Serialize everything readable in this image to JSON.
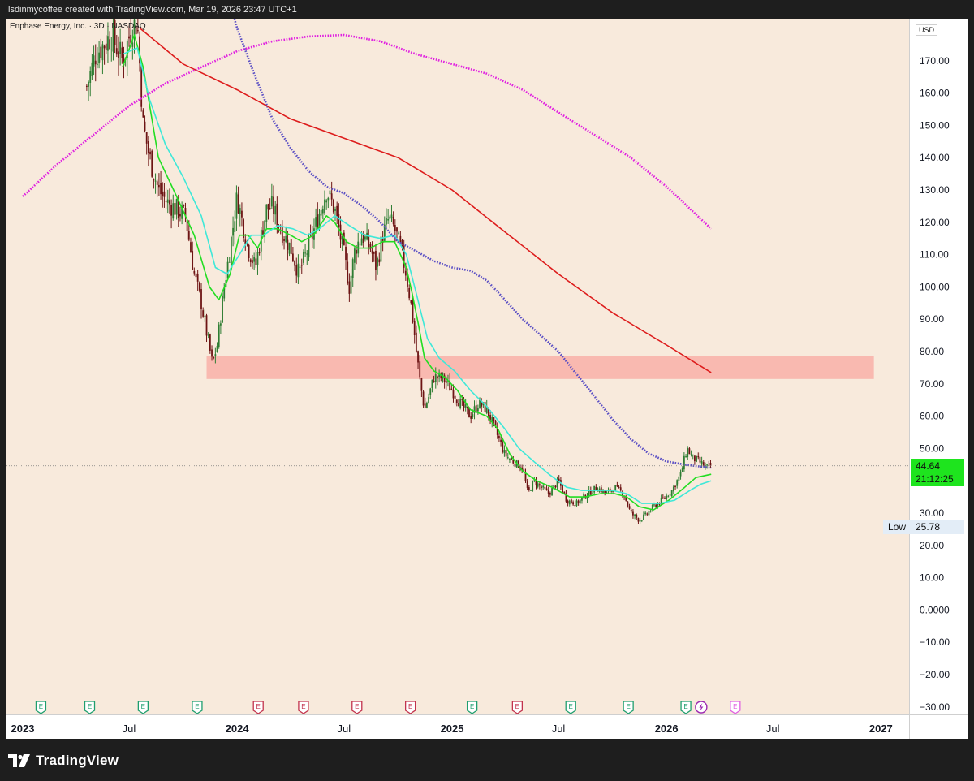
{
  "header": {
    "credit": "lsdinmycoffee created with TradingView.com, Mar 19, 2026 23:47 UTC+1"
  },
  "symbol_line": "Enphase Energy, Inc. · 3D · NASDAQ",
  "price_scale": {
    "currency": "USD",
    "ticks": [
      "170.00",
      "160.00",
      "150.00",
      "140.00",
      "130.00",
      "120.00",
      "110.00",
      "100.00",
      "90.00",
      "80.00",
      "70.00",
      "60.00",
      "50.00",
      "30.00",
      "20.00",
      "10.00",
      "0.0000",
      "−10.00",
      "−20.00",
      "−30.00"
    ],
    "last_price": "44.64",
    "countdown": "21:12:25",
    "low_label": "Low",
    "low_value": "25.78"
  },
  "time_axis": {
    "labels": [
      "2023",
      "Jul",
      "2024",
      "Jul",
      "2025",
      "Jul",
      "2026",
      "Jul",
      "2027"
    ]
  },
  "branding": {
    "name": "TradingView"
  },
  "colors": {
    "background": "#f8eadc",
    "up": "#2e7d32",
    "down": "#6d1414",
    "ma_fast": "#22dd22",
    "ma_teal": "#3ee8d8",
    "ma_purple": "#5b4fc4",
    "ma_red": "#dd1c1c",
    "ma_magenta": "#e020e0",
    "zone": "#f8b4ab",
    "price_tag": "#1ee41e"
  },
  "chart_data": {
    "type": "candlestick",
    "title": "Enphase Energy, Inc. · 3D · NASDAQ",
    "interval": "3D",
    "currency": "USD",
    "x_range": [
      "2023-01-01",
      "2027-01-01"
    ],
    "ylim": [
      -30,
      177
    ],
    "price_line": 44.64,
    "low": 25.78,
    "zone": {
      "from": 71.5,
      "to": 78.5,
      "x_start": "2023-11-10",
      "x_end": "2026-12-20"
    },
    "close_path": [
      [
        "2023-04-20",
        162
      ],
      [
        "2023-05-05",
        172
      ],
      [
        "2023-06-01",
        178
      ],
      [
        "2023-06-20",
        170
      ],
      [
        "2023-07-05",
        180
      ],
      [
        "2023-07-15",
        182
      ],
      [
        "2023-07-25",
        150
      ],
      [
        "2023-08-05",
        140
      ],
      [
        "2023-08-20",
        130
      ],
      [
        "2023-09-05",
        126
      ],
      [
        "2023-09-20",
        124
      ],
      [
        "2023-10-05",
        122
      ],
      [
        "2023-10-20",
        104
      ],
      [
        "2023-11-01",
        95
      ],
      [
        "2023-11-10",
        86
      ],
      [
        "2023-11-20",
        76
      ],
      [
        "2023-11-28",
        82
      ],
      [
        "2023-12-10",
        100
      ],
      [
        "2023-12-20",
        112
      ],
      [
        "2024-01-01",
        128
      ],
      [
        "2024-01-10",
        120
      ],
      [
        "2024-01-20",
        112
      ],
      [
        "2024-02-01",
        106
      ],
      [
        "2024-02-10",
        115
      ],
      [
        "2024-02-20",
        124
      ],
      [
        "2024-03-01",
        125
      ],
      [
        "2024-03-15",
        118
      ],
      [
        "2024-04-01",
        112
      ],
      [
        "2024-04-15",
        104
      ],
      [
        "2024-05-01",
        112
      ],
      [
        "2024-05-15",
        120
      ],
      [
        "2024-06-01",
        130
      ],
      [
        "2024-06-15",
        124
      ],
      [
        "2024-07-01",
        110
      ],
      [
        "2024-07-10",
        100
      ],
      [
        "2024-07-20",
        112
      ],
      [
        "2024-08-01",
        116
      ],
      [
        "2024-08-15",
        112
      ],
      [
        "2024-08-25",
        106
      ],
      [
        "2024-09-05",
        116
      ],
      [
        "2024-09-15",
        121
      ],
      [
        "2024-09-25",
        118
      ],
      [
        "2024-10-05",
        112
      ],
      [
        "2024-10-15",
        104
      ],
      [
        "2024-10-25",
        92
      ],
      [
        "2024-11-01",
        80
      ],
      [
        "2024-11-08",
        70
      ],
      [
        "2024-11-15",
        62
      ],
      [
        "2024-11-22",
        66
      ],
      [
        "2024-12-01",
        72
      ],
      [
        "2024-12-15",
        72
      ],
      [
        "2025-01-01",
        68
      ],
      [
        "2025-01-15",
        64
      ],
      [
        "2025-02-01",
        60
      ],
      [
        "2025-02-15",
        64
      ],
      [
        "2025-03-01",
        62
      ],
      [
        "2025-03-15",
        56
      ],
      [
        "2025-04-01",
        48
      ],
      [
        "2025-04-15",
        46
      ],
      [
        "2025-05-01",
        44
      ],
      [
        "2025-05-10",
        36
      ],
      [
        "2025-05-20",
        40
      ],
      [
        "2025-06-01",
        38
      ],
      [
        "2025-06-15",
        36
      ],
      [
        "2025-07-01",
        40
      ],
      [
        "2025-07-15",
        34
      ],
      [
        "2025-08-01",
        33
      ],
      [
        "2025-08-20",
        36
      ],
      [
        "2025-09-05",
        38
      ],
      [
        "2025-09-20",
        36
      ],
      [
        "2025-10-05",
        38
      ],
      [
        "2025-10-20",
        36
      ],
      [
        "2025-11-01",
        30
      ],
      [
        "2025-11-15",
        28
      ],
      [
        "2025-11-25",
        29
      ],
      [
        "2025-12-10",
        32
      ],
      [
        "2025-12-25",
        34
      ],
      [
        "2026-01-10",
        37
      ],
      [
        "2026-01-25",
        42
      ],
      [
        "2026-02-05",
        50
      ],
      [
        "2026-02-15",
        47
      ],
      [
        "2026-02-25",
        46
      ],
      [
        "2026-03-10",
        44
      ],
      [
        "2026-03-18",
        44.64
      ]
    ],
    "moving_averages": [
      {
        "color": "#22dd22",
        "style": "solid",
        "points": [
          [
            "2023-06-20",
            168
          ],
          [
            "2023-07-10",
            178
          ],
          [
            "2023-07-25",
            168
          ],
          [
            "2023-08-20",
            140
          ],
          [
            "2023-09-20",
            128
          ],
          [
            "2023-10-20",
            116
          ],
          [
            "2023-11-15",
            100
          ],
          [
            "2023-12-01",
            96
          ],
          [
            "2023-12-20",
            104
          ],
          [
            "2024-01-05",
            116
          ],
          [
            "2024-01-20",
            116
          ],
          [
            "2024-02-05",
            112
          ],
          [
            "2024-02-20",
            118
          ],
          [
            "2024-03-10",
            118
          ],
          [
            "2024-04-01",
            116
          ],
          [
            "2024-04-20",
            114
          ],
          [
            "2024-05-10",
            116
          ],
          [
            "2024-06-01",
            122
          ],
          [
            "2024-06-15",
            120
          ],
          [
            "2024-07-05",
            114
          ],
          [
            "2024-07-25",
            112
          ],
          [
            "2024-08-15",
            112
          ],
          [
            "2024-09-05",
            114
          ],
          [
            "2024-09-25",
            114
          ],
          [
            "2024-10-15",
            106
          ],
          [
            "2024-10-25",
            98
          ],
          [
            "2024-11-05",
            88
          ],
          [
            "2024-11-15",
            78
          ],
          [
            "2024-12-01",
            74
          ],
          [
            "2024-12-20",
            72
          ],
          [
            "2025-01-10",
            68
          ],
          [
            "2025-02-01",
            62
          ],
          [
            "2025-03-01",
            60
          ],
          [
            "2025-03-20",
            56
          ],
          [
            "2025-04-10",
            48
          ],
          [
            "2025-05-01",
            43
          ],
          [
            "2025-05-25",
            40
          ],
          [
            "2025-06-20",
            38
          ],
          [
            "2025-07-20",
            35
          ],
          [
            "2025-08-15",
            35
          ],
          [
            "2025-09-10",
            36
          ],
          [
            "2025-10-05",
            36
          ],
          [
            "2025-10-25",
            35
          ],
          [
            "2025-11-15",
            32
          ],
          [
            "2025-12-10",
            31
          ],
          [
            "2026-01-05",
            34
          ],
          [
            "2026-02-01",
            38
          ],
          [
            "2026-02-20",
            41
          ],
          [
            "2026-03-18",
            42
          ]
        ]
      },
      {
        "color": "#3ee8d8",
        "style": "solid",
        "points": [
          [
            "2023-06-20",
            172
          ],
          [
            "2023-07-15",
            174
          ],
          [
            "2023-08-05",
            158
          ],
          [
            "2023-09-01",
            144
          ],
          [
            "2023-10-01",
            134
          ],
          [
            "2023-11-01",
            122
          ],
          [
            "2023-11-25",
            106
          ],
          [
            "2023-12-15",
            104
          ],
          [
            "2024-01-05",
            110
          ],
          [
            "2024-01-25",
            116
          ],
          [
            "2024-02-15",
            116
          ],
          [
            "2024-03-10",
            119
          ],
          [
            "2024-04-05",
            118
          ],
          [
            "2024-04-30",
            116
          ],
          [
            "2024-05-20",
            118
          ],
          [
            "2024-06-15",
            122
          ],
          [
            "2024-07-10",
            119
          ],
          [
            "2024-08-05",
            116
          ],
          [
            "2024-09-01",
            115
          ],
          [
            "2024-09-25",
            116
          ],
          [
            "2024-10-15",
            110
          ],
          [
            "2024-11-01",
            98
          ],
          [
            "2024-11-20",
            84
          ],
          [
            "2024-12-10",
            78
          ],
          [
            "2025-01-05",
            74
          ],
          [
            "2025-02-01",
            68
          ],
          [
            "2025-03-01",
            63
          ],
          [
            "2025-04-01",
            56
          ],
          [
            "2025-04-25",
            50
          ],
          [
            "2025-05-20",
            46
          ],
          [
            "2025-06-15",
            42
          ],
          [
            "2025-07-15",
            38
          ],
          [
            "2025-08-10",
            37
          ],
          [
            "2025-09-05",
            37
          ],
          [
            "2025-10-01",
            37
          ],
          [
            "2025-10-25",
            36
          ],
          [
            "2025-11-20",
            33
          ],
          [
            "2025-12-20",
            33
          ],
          [
            "2026-01-15",
            34
          ],
          [
            "2026-02-10",
            37
          ],
          [
            "2026-03-01",
            39
          ],
          [
            "2026-03-18",
            40
          ]
        ]
      },
      {
        "color": "#5b4fc4",
        "style": "dotted",
        "points": [
          [
            "2023-12-01",
            200
          ],
          [
            "2024-01-01",
            180
          ],
          [
            "2024-02-01",
            165
          ],
          [
            "2024-03-01",
            152
          ],
          [
            "2024-04-01",
            143
          ],
          [
            "2024-05-01",
            136
          ],
          [
            "2024-06-01",
            131
          ],
          [
            "2024-07-01",
            129
          ],
          [
            "2024-08-01",
            125
          ],
          [
            "2024-09-01",
            120
          ],
          [
            "2024-10-01",
            114
          ],
          [
            "2024-11-01",
            111
          ],
          [
            "2024-12-01",
            108
          ],
          [
            "2025-01-01",
            106
          ],
          [
            "2025-02-01",
            105
          ],
          [
            "2025-03-01",
            102
          ],
          [
            "2025-04-01",
            96
          ],
          [
            "2025-05-01",
            90
          ],
          [
            "2025-06-01",
            85
          ],
          [
            "2025-07-01",
            80
          ],
          [
            "2025-08-01",
            73
          ],
          [
            "2025-09-01",
            66
          ],
          [
            "2025-10-01",
            59
          ],
          [
            "2025-11-01",
            53
          ],
          [
            "2025-12-01",
            48.5
          ],
          [
            "2026-01-01",
            46
          ],
          [
            "2026-02-01",
            45
          ],
          [
            "2026-03-18",
            44
          ]
        ]
      },
      {
        "color": "#dd1c1c",
        "style": "solid",
        "points": [
          [
            "2023-07-20",
            180
          ],
          [
            "2023-10-01",
            169
          ],
          [
            "2024-01-01",
            161
          ],
          [
            "2024-04-01",
            152
          ],
          [
            "2024-07-01",
            146
          ],
          [
            "2024-10-01",
            140
          ],
          [
            "2025-01-01",
            130
          ],
          [
            "2025-04-01",
            117
          ],
          [
            "2025-07-01",
            104
          ],
          [
            "2025-10-01",
            92
          ],
          [
            "2026-01-01",
            82
          ],
          [
            "2026-03-18",
            73.5
          ]
        ]
      },
      {
        "color": "#e020e0",
        "style": "dotted",
        "points": [
          [
            "2023-01-01",
            128
          ],
          [
            "2023-03-01",
            138
          ],
          [
            "2023-05-01",
            147
          ],
          [
            "2023-07-01",
            156
          ],
          [
            "2023-09-01",
            163
          ],
          [
            "2023-11-01",
            168
          ],
          [
            "2024-01-01",
            173
          ],
          [
            "2024-03-01",
            176
          ],
          [
            "2024-05-01",
            177.5
          ],
          [
            "2024-07-01",
            178
          ],
          [
            "2024-09-01",
            176
          ],
          [
            "2024-11-01",
            172
          ],
          [
            "2025-01-01",
            169
          ],
          [
            "2025-03-01",
            166
          ],
          [
            "2025-05-01",
            161
          ],
          [
            "2025-07-01",
            154
          ],
          [
            "2025-09-01",
            147
          ],
          [
            "2025-11-01",
            140
          ],
          [
            "2026-01-01",
            131
          ],
          [
            "2026-03-18",
            118
          ]
        ]
      }
    ],
    "events": [
      {
        "date": "2023-02-01",
        "kind": "E",
        "tone": "green"
      },
      {
        "date": "2023-04-25",
        "kind": "E",
        "tone": "green"
      },
      {
        "date": "2023-07-25",
        "kind": "E",
        "tone": "green"
      },
      {
        "date": "2023-10-25",
        "kind": "E",
        "tone": "green"
      },
      {
        "date": "2024-02-06",
        "kind": "E",
        "tone": "red"
      },
      {
        "date": "2024-04-23",
        "kind": "E",
        "tone": "red"
      },
      {
        "date": "2024-07-23",
        "kind": "E",
        "tone": "red"
      },
      {
        "date": "2024-10-22",
        "kind": "E",
        "tone": "red"
      },
      {
        "date": "2025-02-04",
        "kind": "E",
        "tone": "green"
      },
      {
        "date": "2025-04-22",
        "kind": "E",
        "tone": "red"
      },
      {
        "date": "2025-07-22",
        "kind": "E",
        "tone": "green"
      },
      {
        "date": "2025-10-28",
        "kind": "E",
        "tone": "green"
      },
      {
        "date": "2026-02-03",
        "kind": "E",
        "tone": "green"
      },
      {
        "date": "2026-03-01",
        "kind": "lightning",
        "tone": "purple"
      },
      {
        "date": "2026-04-28",
        "kind": "E",
        "tone": "future"
      }
    ]
  }
}
